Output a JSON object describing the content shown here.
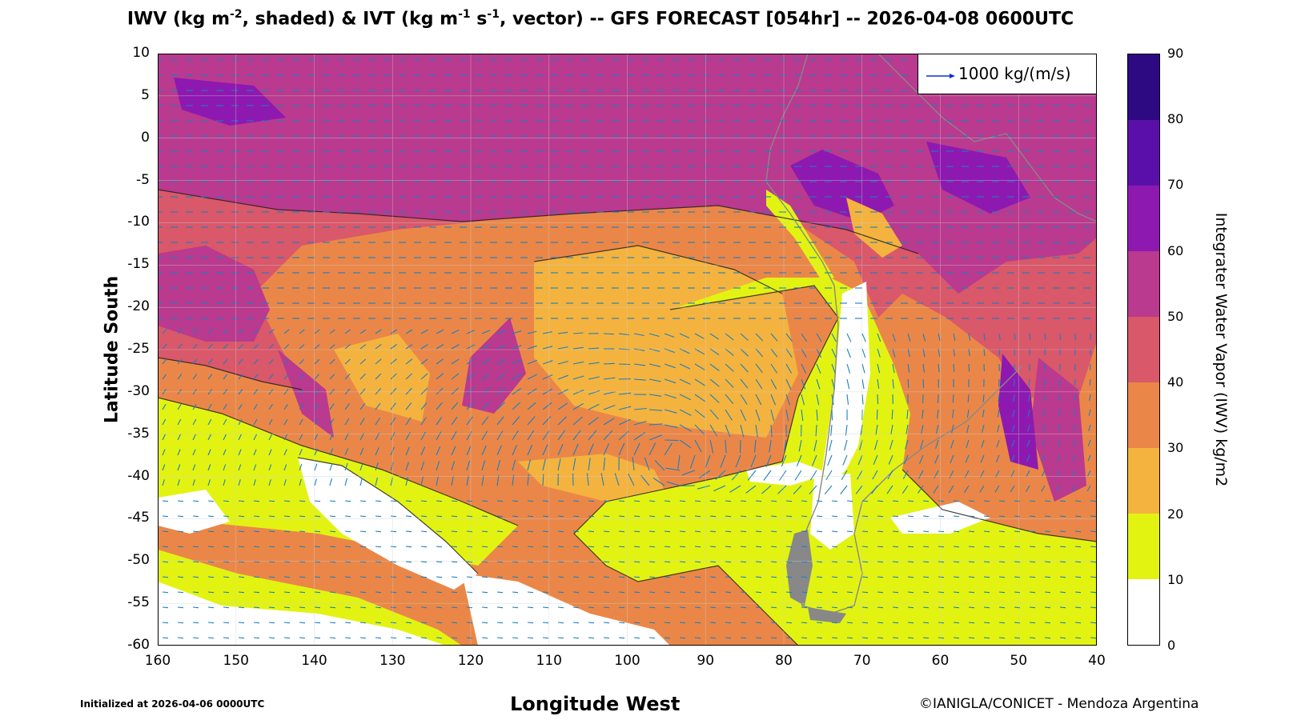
{
  "title": {
    "p1": "IWV (kg m",
    "s1": "-2",
    "p2": ", shaded) & IVT (kg m",
    "s2": "-1",
    "p3": " s",
    "s3": "-1",
    "p4": ", vector) -- GFS FORECAST [054hr] -- 2026-04-08 0600UTC"
  },
  "axes": {
    "xlabel": "Longitude West",
    "ylabel": "Latitude South",
    "xticks": [
      "160",
      "150",
      "140",
      "130",
      "120",
      "110",
      "100",
      "90",
      "80",
      "70",
      "60",
      "50",
      "40"
    ],
    "yticks": [
      "10",
      "5",
      "0",
      "-5",
      "-10",
      "-15",
      "-20",
      "-25",
      "-30",
      "-35",
      "-40",
      "-45",
      "-50",
      "-55",
      "-60"
    ]
  },
  "legend": {
    "vector_label": "1000 kg/(m/s)",
    "vector_color": "#1030d0"
  },
  "colorbar": {
    "label": "Integrater Water Vapor (IWV) kg/m2",
    "ticks": [
      "90",
      "80",
      "70",
      "60",
      "50",
      "40",
      "30",
      "20",
      "10",
      "0"
    ],
    "colors": [
      "#2e0a82",
      "#5a10a8",
      "#8e19b0",
      "#b93a8e",
      "#d9586a",
      "#ea8748",
      "#f4b33e",
      "#e2f312",
      "#ffffff"
    ]
  },
  "footer": {
    "init": "Initialized at 2026-04-06 0000UTC",
    "credit": "©IANIGLA/CONICET - Mendoza Argentina"
  }
}
